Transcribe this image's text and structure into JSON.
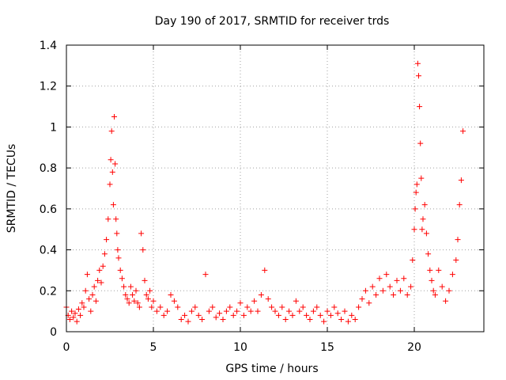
{
  "chart_data": {
    "type": "scatter",
    "title": "Day 190 of 2017, SRMTID for receiver trds",
    "xlabel": "GPS time / hours",
    "ylabel": "SRMTID / TECUs",
    "xlim": [
      0,
      24
    ],
    "ylim": [
      0,
      1.4
    ],
    "xticks": [
      0,
      5,
      10,
      15,
      20
    ],
    "xtick_labels": [
      "0",
      "5",
      "10",
      "15",
      "20"
    ],
    "yticks": [
      0,
      0.2,
      0.4,
      0.6,
      0.8,
      1.0,
      1.2,
      1.4
    ],
    "ytick_labels": [
      "0",
      "0.2",
      "0.4",
      "0.6",
      "0.8",
      "1",
      "1.2",
      "1.4"
    ],
    "grid": true,
    "marker": "+",
    "color": "#ff0000",
    "series": [
      {
        "name": "SRMTID",
        "x": [
          0.0,
          0.1,
          0.2,
          0.3,
          0.4,
          0.5,
          0.6,
          0.7,
          0.8,
          0.9,
          1.0,
          1.1,
          1.2,
          1.3,
          1.4,
          1.5,
          1.6,
          1.7,
          1.8,
          1.9,
          2.0,
          2.1,
          2.2,
          2.3,
          2.4,
          2.5,
          2.55,
          2.6,
          2.65,
          2.7,
          2.75,
          2.8,
          2.85,
          2.9,
          2.95,
          3.0,
          3.1,
          3.2,
          3.3,
          3.4,
          3.5,
          3.6,
          3.7,
          3.8,
          3.9,
          4.0,
          4.1,
          4.2,
          4.3,
          4.4,
          4.5,
          4.6,
          4.7,
          4.8,
          4.9,
          5.0,
          5.2,
          5.4,
          5.6,
          5.8,
          6.0,
          6.2,
          6.4,
          6.6,
          6.8,
          7.0,
          7.2,
          7.4,
          7.6,
          7.8,
          8.0,
          8.2,
          8.4,
          8.6,
          8.8,
          9.0,
          9.2,
          9.4,
          9.6,
          9.8,
          10.0,
          10.2,
          10.4,
          10.6,
          10.8,
          11.0,
          11.2,
          11.4,
          11.6,
          11.8,
          12.0,
          12.2,
          12.4,
          12.6,
          12.8,
          13.0,
          13.2,
          13.4,
          13.6,
          13.8,
          14.0,
          14.2,
          14.4,
          14.6,
          14.8,
          15.0,
          15.2,
          15.4,
          15.6,
          15.8,
          16.0,
          16.2,
          16.4,
          16.6,
          16.8,
          17.0,
          17.2,
          17.4,
          17.6,
          17.8,
          18.0,
          18.2,
          18.4,
          18.6,
          18.8,
          19.0,
          19.2,
          19.4,
          19.6,
          19.8,
          19.9,
          20.0,
          20.05,
          20.1,
          20.15,
          20.2,
          20.25,
          20.3,
          20.35,
          20.4,
          20.45,
          20.5,
          20.6,
          20.7,
          20.8,
          20.9,
          21.0,
          21.1,
          21.2,
          21.4,
          21.6,
          21.8,
          22.0,
          22.2,
          22.4,
          22.5,
          22.6,
          22.7,
          22.8
        ],
        "y": [
          0.12,
          0.08,
          0.06,
          0.1,
          0.07,
          0.09,
          0.05,
          0.11,
          0.08,
          0.14,
          0.12,
          0.2,
          0.28,
          0.16,
          0.1,
          0.18,
          0.22,
          0.15,
          0.25,
          0.3,
          0.24,
          0.32,
          0.38,
          0.45,
          0.55,
          0.72,
          0.84,
          0.98,
          0.78,
          0.62,
          1.05,
          0.82,
          0.55,
          0.48,
          0.4,
          0.36,
          0.3,
          0.26,
          0.22,
          0.18,
          0.16,
          0.14,
          0.22,
          0.18,
          0.15,
          0.2,
          0.14,
          0.12,
          0.48,
          0.4,
          0.25,
          0.18,
          0.16,
          0.2,
          0.12,
          0.15,
          0.1,
          0.12,
          0.08,
          0.1,
          0.18,
          0.15,
          0.12,
          0.06,
          0.08,
          0.05,
          0.1,
          0.12,
          0.08,
          0.06,
          0.28,
          0.1,
          0.12,
          0.07,
          0.09,
          0.06,
          0.1,
          0.12,
          0.08,
          0.1,
          0.14,
          0.08,
          0.12,
          0.1,
          0.15,
          0.1,
          0.18,
          0.3,
          0.16,
          0.12,
          0.1,
          0.08,
          0.12,
          0.06,
          0.1,
          0.08,
          0.15,
          0.1,
          0.12,
          0.08,
          0.06,
          0.1,
          0.12,
          0.08,
          0.05,
          0.1,
          0.08,
          0.12,
          0.09,
          0.06,
          0.1,
          0.05,
          0.08,
          0.06,
          0.12,
          0.16,
          0.2,
          0.14,
          0.22,
          0.18,
          0.26,
          0.2,
          0.28,
          0.22,
          0.18,
          0.25,
          0.2,
          0.26,
          0.18,
          0.22,
          0.35,
          0.5,
          0.6,
          0.68,
          0.72,
          1.31,
          1.25,
          1.1,
          0.92,
          0.75,
          0.5,
          0.55,
          0.62,
          0.48,
          0.38,
          0.3,
          0.25,
          0.2,
          0.18,
          0.3,
          0.22,
          0.15,
          0.2,
          0.28,
          0.35,
          0.45,
          0.62,
          0.74,
          0.98
        ]
      }
    ]
  }
}
